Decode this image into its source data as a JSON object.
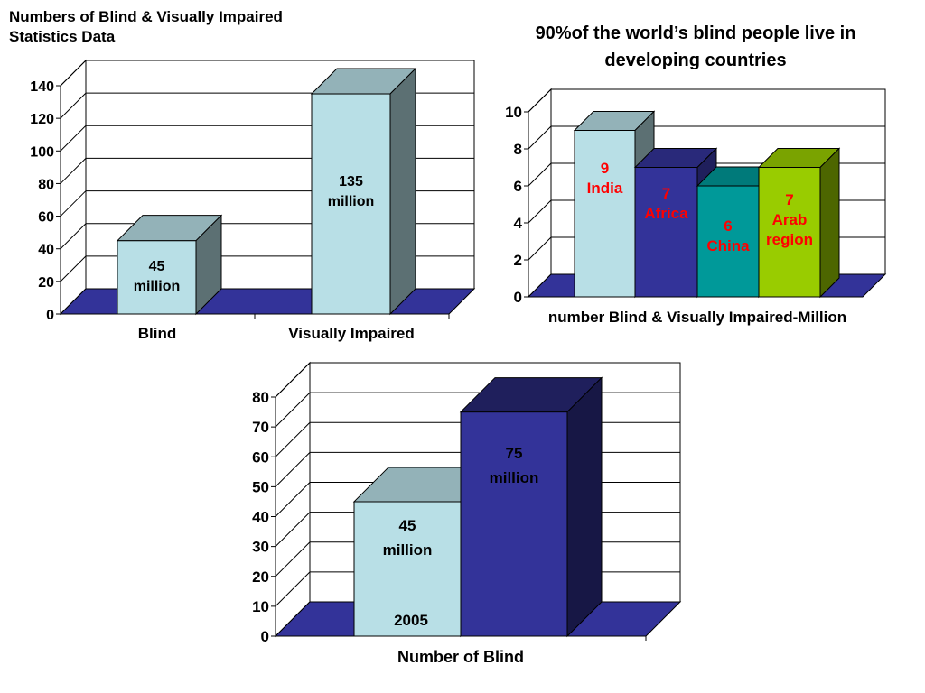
{
  "chart_data": [
    {
      "type": "bar",
      "title": "Numbers of Blind & Visually Impaired Statistics Data",
      "title_lines": [
        "Numbers of Blind & Visually Impaired",
        "Statistics Data"
      ],
      "categories": [
        "Blind",
        "Visually Impaired"
      ],
      "values": [
        45,
        135
      ],
      "data_labels": [
        [
          "45",
          "million"
        ],
        [
          "135",
          "million"
        ]
      ],
      "ylim": [
        0,
        140
      ],
      "yticks": [
        0,
        20,
        40,
        60,
        80,
        100,
        120,
        140
      ],
      "xlabel": "",
      "ylabel": "",
      "grid": true,
      "colors": [
        "#b8dfe6",
        "#b8dfe6"
      ],
      "floor_color": "#333399"
    },
    {
      "type": "bar",
      "title": "90%of the world’s blind people live in developing countries",
      "title_lines": [
        "90%of the world’s blind people live in",
        "developing countries"
      ],
      "series": [
        {
          "name": "India",
          "values": [
            9
          ],
          "label": [
            "9",
            "India"
          ],
          "color": "#b8dfe6"
        },
        {
          "name": "Africa",
          "values": [
            7
          ],
          "label": [
            "7",
            "Africa"
          ],
          "color": "#333399"
        },
        {
          "name": "China",
          "values": [
            6
          ],
          "label": [
            "6",
            "China"
          ],
          "color": "#009999"
        },
        {
          "name": "Arab region",
          "values": [
            7
          ],
          "label": [
            "7",
            "Arab",
            "region"
          ],
          "color": "#99cc00"
        }
      ],
      "ylim": [
        0,
        10
      ],
      "yticks": [
        0,
        2,
        4,
        6,
        8,
        10
      ],
      "xlabel": "number Blind & Visually Impaired-Million",
      "grid": true,
      "label_color": "#ff0000",
      "floor_color": "#333399"
    },
    {
      "type": "bar",
      "title": "",
      "categories": [
        "2005"
      ],
      "series": [
        {
          "name": "",
          "values": [
            45
          ],
          "label": [
            "45",
            "million"
          ],
          "color": "#b8dfe6"
        },
        {
          "name": "",
          "values": [
            75
          ],
          "label": [
            "75",
            "million"
          ],
          "color": "#333399"
        }
      ],
      "ylim": [
        0,
        80
      ],
      "yticks": [
        0,
        10,
        20,
        30,
        40,
        50,
        60,
        70,
        80
      ],
      "xlabel": "Number of Blind",
      "grid": true,
      "floor_color": "#333399"
    }
  ]
}
